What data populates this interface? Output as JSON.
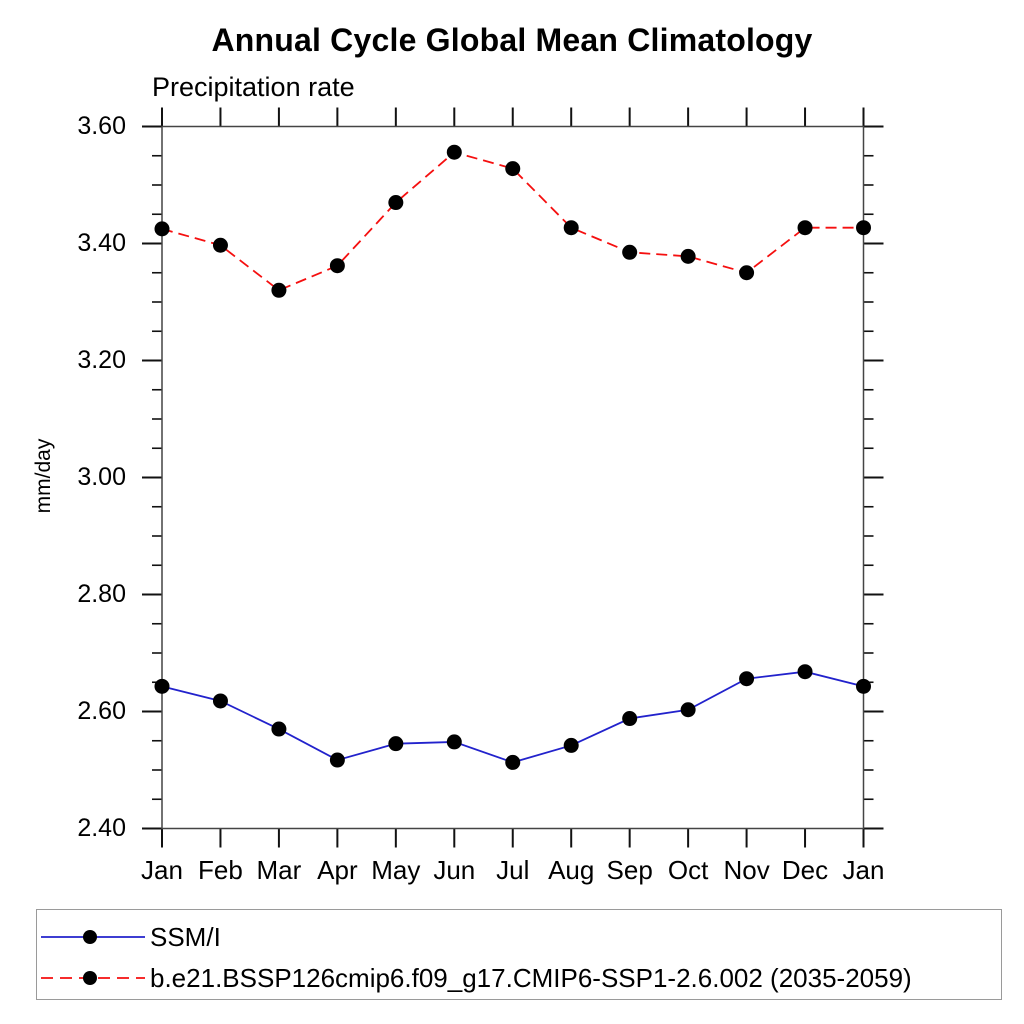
{
  "title": "Annual Cycle Global Mean Climatology",
  "subtitle": "Precipitation rate",
  "y_axis_unit": "mm/day",
  "chart_data": {
    "type": "line",
    "title": "Annual Cycle Global Mean Climatology",
    "subtitle": "Precipitation rate",
    "ylabel": "mm/day",
    "x_categories": [
      "Jan",
      "Feb",
      "Mar",
      "Apr",
      "May",
      "Jun",
      "Jul",
      "Aug",
      "Sep",
      "Oct",
      "Nov",
      "Dec",
      "Jan"
    ],
    "series": [
      {
        "name": "SSM/I",
        "line_style": "solid",
        "line_color": "#2222cc",
        "marker": "filled-black-circle",
        "values": [
          2.643,
          2.618,
          2.57,
          2.517,
          2.545,
          2.548,
          2.513,
          2.542,
          2.588,
          2.603,
          2.656,
          2.668,
          2.643
        ]
      },
      {
        "name": "b.e21.BSSP126cmip6.f09_g17.CMIP6-SSP1-2.6.002 (2035-2059)",
        "line_style": "dashed",
        "line_color": "#f50f0f",
        "marker": "filled-black-circle",
        "values": [
          3.425,
          3.397,
          3.32,
          3.362,
          3.47,
          3.556,
          3.528,
          3.427,
          3.385,
          3.378,
          3.35,
          3.427,
          3.427
        ]
      }
    ],
    "ylim": [
      2.4,
      3.6
    ],
    "y_ticks": [
      3.6,
      3.4,
      3.2,
      3.0,
      2.8,
      2.6,
      2.4
    ],
    "y_tick_labels": [
      "3.60",
      "3.40",
      "3.20",
      "3.00",
      "2.80",
      "2.60",
      "2.40"
    ],
    "y_minor_step": 0.05,
    "grid": false,
    "marker_color": "#000000",
    "legend_position": "bottom-left-box"
  },
  "colors": {
    "ssmi_line": "#2222cc",
    "model_line": "#f50f0f",
    "marker": "#000000",
    "axis_box": "#444444",
    "tick": "#111111",
    "legend_border": "#9a9a9a"
  }
}
